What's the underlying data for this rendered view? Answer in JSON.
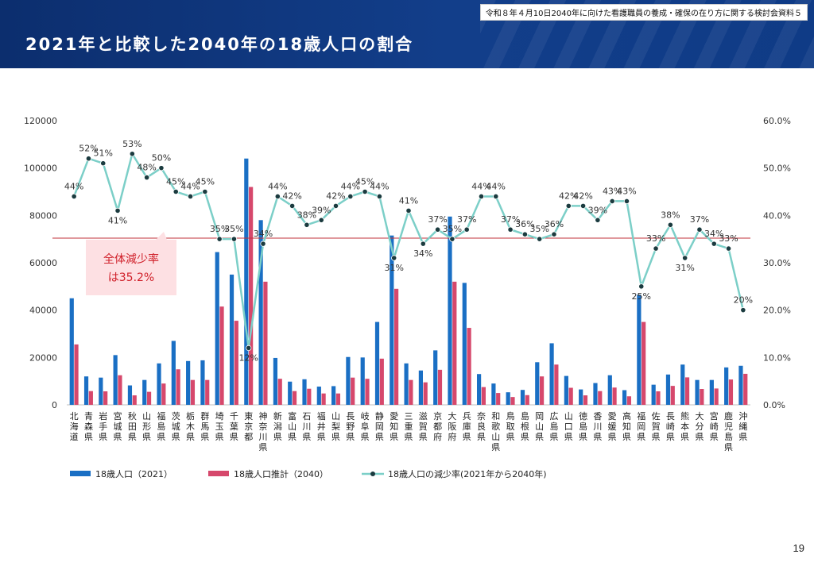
{
  "slide": {
    "title": "2021年と比較した2040年の18歳人口の割合",
    "source_note": "令和８年４月10日2040年に向けた看護職員の養成・確保の在り方に関する検討会資料５",
    "page_number": "19"
  },
  "chart_data": {
    "type": "bar",
    "title": "",
    "categories": [
      "北海道",
      "青森県",
      "岩手県",
      "宮城県",
      "秋田県",
      "山形県",
      "福島県",
      "茨城県",
      "栃木県",
      "群馬県",
      "埼玉県",
      "千葉県",
      "東京都",
      "神奈川県",
      "新潟県",
      "富山県",
      "石川県",
      "福井県",
      "山梨県",
      "長野県",
      "岐阜県",
      "静岡県",
      "愛知県",
      "三重県",
      "滋賀県",
      "京都府",
      "大阪府",
      "兵庫県",
      "奈良県",
      "和歌山県",
      "鳥取県",
      "島根県",
      "岡山県",
      "広島県",
      "山口県",
      "徳島県",
      "香川県",
      "愛媛県",
      "高知県",
      "福岡県",
      "佐賀県",
      "長崎県",
      "熊本県",
      "大分県",
      "宮崎県",
      "鹿児島県",
      "沖縄県"
    ],
    "series": [
      {
        "name": "18歳人口（2021）",
        "type": "bar",
        "axis": "left",
        "color": "#1a6fc4",
        "values": [
          45000,
          12000,
          11500,
          21000,
          8200,
          10500,
          17500,
          27000,
          18500,
          18800,
          64500,
          55000,
          104000,
          78000,
          19800,
          9800,
          10800,
          7700,
          7900,
          20200,
          20000,
          35000,
          71500,
          17500,
          14500,
          23000,
          79500,
          51500,
          13000,
          9000,
          5300,
          6300,
          18000,
          26000,
          12200,
          6500,
          9200,
          12500,
          6200,
          46500,
          8500,
          12800,
          17000,
          10500,
          10500,
          15800,
          16500
        ]
      },
      {
        "name": "18歳人口推計（2040）",
        "type": "bar",
        "axis": "left",
        "color": "#d6486c",
        "values": [
          25500,
          5800,
          5700,
          12500,
          4000,
          5500,
          9000,
          15000,
          10500,
          10500,
          41500,
          35500,
          92000,
          52000,
          11000,
          5800,
          6800,
          4800,
          4800,
          11500,
          11000,
          19500,
          49000,
          10500,
          9500,
          14800,
          52000,
          32500,
          7500,
          5000,
          3300,
          4100,
          12000,
          17000,
          7200,
          4000,
          5800,
          7300,
          3600,
          35000,
          5700,
          8000,
          11600,
          6700,
          6900,
          10700,
          13100
        ]
      },
      {
        "name": "18歳人口の減少率(2021年から2040年)",
        "type": "line",
        "axis": "right",
        "color": "#7ccfc8",
        "values": [
          44,
          52,
          51,
          41,
          53,
          48,
          50,
          45,
          44,
          45,
          35,
          35,
          12,
          34,
          44,
          42,
          38,
          39,
          42,
          44,
          45,
          44,
          31,
          41,
          34,
          37,
          35,
          37,
          44,
          44,
          37,
          36,
          35,
          36,
          42,
          42,
          39,
          43,
          43,
          25,
          33,
          38,
          31,
          37,
          34,
          33,
          20
        ],
        "labels": [
          "44%",
          "52%",
          "51%",
          "41%",
          "53%",
          "48%",
          "50%",
          "45%",
          "44%",
          "45%",
          "35%",
          "35%",
          "12%",
          "34%",
          "44%",
          "42%",
          "38%",
          "39%",
          "42%",
          "44%",
          "45%",
          "44%",
          "31%",
          "41%",
          "34%",
          "37%",
          "35%",
          "37%",
          "44%",
          "44%",
          "37%",
          "36%",
          "35%",
          "36%",
          "42%",
          "42%",
          "39%",
          "43%",
          "43%",
          "25%",
          "33%",
          "38%",
          "31%",
          "37%",
          "34%",
          "33%",
          "20%"
        ]
      }
    ],
    "y_left": {
      "min": 0,
      "max": 120000,
      "ticks": [
        "0",
        "20000",
        "40000",
        "60000",
        "80000",
        "100000",
        "120000"
      ]
    },
    "y_right": {
      "min": 0,
      "max": 60,
      "ticks": [
        "0.0%",
        "10.0%",
        "20.0%",
        "30.0%",
        "40.0%",
        "50.0%",
        "60.0%"
      ]
    },
    "reference_line": {
      "value": 35.2,
      "axis": "right",
      "color": "#c0303a"
    },
    "callout": {
      "line1": "全体減少率",
      "line2": "は35.2%",
      "color": "#d0202a",
      "bg": "#fde0e3"
    },
    "grid": false,
    "legend_position": "bottom-left"
  }
}
